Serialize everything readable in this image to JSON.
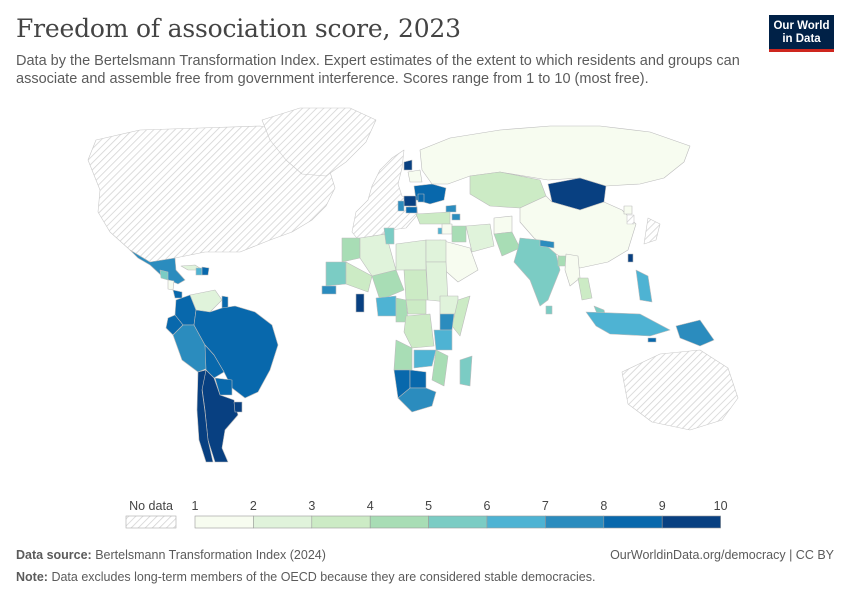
{
  "header": {
    "title": "Freedom of association score, 2023",
    "subtitle": "Data by the Bertelsmann Transformation Index. Expert estimates of the extent to which residents and groups can associate and assemble free from government interference. Scores range from 1 to 10 (most free)."
  },
  "logo": {
    "line1": "Our World",
    "line2": "in Data",
    "bg": "#002147",
    "accent": "#ce261e"
  },
  "legend": {
    "no_data_label": "No data",
    "ticks": [
      "1",
      "2",
      "3",
      "4",
      "5",
      "6",
      "7",
      "8",
      "9",
      "10"
    ],
    "colors": [
      "#f7fcf0",
      "#e0f3db",
      "#ccebc5",
      "#a8ddb5",
      "#7bccc4",
      "#4eb3d3",
      "#2b8cbe",
      "#0868ac",
      "#084081"
    ]
  },
  "footer": {
    "source_label": "Data source:",
    "source_text": "Bertelsmann Transformation Index (2024)",
    "url": "OurWorldinData.org/democracy | CC BY",
    "note_label": "Note:",
    "note_text": "Data excludes long-term members of the OECD because they are considered stable democracies."
  },
  "chart_data": {
    "type": "choropleth",
    "year": 2023,
    "scale": {
      "min": 1,
      "max": 10
    },
    "regions": [
      {
        "name": "North America (OECD)",
        "score": null
      },
      {
        "name": "Greenland",
        "score": null
      },
      {
        "name": "Mexico",
        "score": 7
      },
      {
        "name": "Guatemala",
        "score": 5
      },
      {
        "name": "Cuba",
        "score": 2
      },
      {
        "name": "Haiti",
        "score": 6
      },
      {
        "name": "Dominican Republic",
        "score": 8
      },
      {
        "name": "Nicaragua",
        "score": 1
      },
      {
        "name": "Panama",
        "score": 8
      },
      {
        "name": "Venezuela",
        "score": 2
      },
      {
        "name": "Guyana",
        "score": 8
      },
      {
        "name": "Colombia",
        "score": 8
      },
      {
        "name": "Ecuador",
        "score": 8
      },
      {
        "name": "Peru",
        "score": 7
      },
      {
        "name": "Brazil",
        "score": 8
      },
      {
        "name": "Bolivia",
        "score": 8
      },
      {
        "name": "Paraguay",
        "score": 8
      },
      {
        "name": "Argentina",
        "score": 9.5
      },
      {
        "name": "Uruguay",
        "score": 9.5
      },
      {
        "name": "Chile",
        "score": 9.5
      },
      {
        "name": "Western Europe (OECD)",
        "score": null
      },
      {
        "name": "Ukraine",
        "score": 8.5
      },
      {
        "name": "Belarus",
        "score": 1.5
      },
      {
        "name": "Lithuania",
        "score": 9.5
      },
      {
        "name": "Romania",
        "score": 9
      },
      {
        "name": "Moldova",
        "score": 8.5
      },
      {
        "name": "Bulgaria",
        "score": 8.5
      },
      {
        "name": "Serbia",
        "score": 7
      },
      {
        "name": "Georgia",
        "score": 7
      },
      {
        "name": "Armenia",
        "score": 7
      },
      {
        "name": "Russia",
        "score": 1.5
      },
      {
        "name": "Kazakhstan",
        "score": 3
      },
      {
        "name": "Mongolia",
        "score": 9
      },
      {
        "name": "China",
        "score": 1
      },
      {
        "name": "North Korea",
        "score": 1
      },
      {
        "name": "South Korea (OECD)",
        "score": null
      },
      {
        "name": "Japan (OECD)",
        "score": null
      },
      {
        "name": "Taiwan",
        "score": 9.5
      },
      {
        "name": "Turkey",
        "score": 3
      },
      {
        "name": "Lebanon",
        "score": 6
      },
      {
        "name": "Syria",
        "score": 1
      },
      {
        "name": "Iraq",
        "score": 4
      },
      {
        "name": "Iran",
        "score": 2
      },
      {
        "name": "Saudi Arabia",
        "score": 1
      },
      {
        "name": "Afghanistan",
        "score": 1
      },
      {
        "name": "Pakistan",
        "score": 4
      },
      {
        "name": "India",
        "score": 5
      },
      {
        "name": "Nepal",
        "score": 7
      },
      {
        "name": "Bangladesh",
        "score": 4
      },
      {
        "name": "Sri Lanka",
        "score": 5
      },
      {
        "name": "Myanmar",
        "score": 1
      },
      {
        "name": "Thailand",
        "score": 3
      },
      {
        "name": "Philippines",
        "score": 6
      },
      {
        "name": "Malaysia",
        "score": 5
      },
      {
        "name": "Indonesia",
        "score": 6
      },
      {
        "name": "Timor-Leste",
        "score": 8
      },
      {
        "name": "Papua New Guinea",
        "score": 7
      },
      {
        "name": "Australia (OECD)",
        "score": null
      },
      {
        "name": "Morocco",
        "score": 4
      },
      {
        "name": "Algeria",
        "score": 2
      },
      {
        "name": "Libya",
        "score": 2
      },
      {
        "name": "Egypt",
        "score": 2
      },
      {
        "name": "Tunisia",
        "score": 5
      },
      {
        "name": "Mauritania",
        "score": 5
      },
      {
        "name": "Mali",
        "score": 3
      },
      {
        "name": "Niger",
        "score": 4
      },
      {
        "name": "Chad",
        "score": 3
      },
      {
        "name": "Sudan",
        "score": 2
      },
      {
        "name": "Senegal",
        "score": 7
      },
      {
        "name": "Ghana",
        "score": 9
      },
      {
        "name": "Nigeria",
        "score": 6
      },
      {
        "name": "Cameroon",
        "score": 4
      },
      {
        "name": "Central African Republic",
        "score": 3
      },
      {
        "name": "Ethiopia",
        "score": 2
      },
      {
        "name": "Somalia",
        "score": 3
      },
      {
        "name": "DR Congo",
        "score": 3.5
      },
      {
        "name": "Kenya",
        "score": 7
      },
      {
        "name": "Tanzania",
        "score": 6
      },
      {
        "name": "Angola",
        "score": 4
      },
      {
        "name": "Zambia",
        "score": 6
      },
      {
        "name": "Mozambique",
        "score": 4
      },
      {
        "name": "Madagascar",
        "score": 5
      },
      {
        "name": "Namibia",
        "score": 8.5
      },
      {
        "name": "Botswana",
        "score": 8
      },
      {
        "name": "South Africa",
        "score": 7
      }
    ]
  }
}
